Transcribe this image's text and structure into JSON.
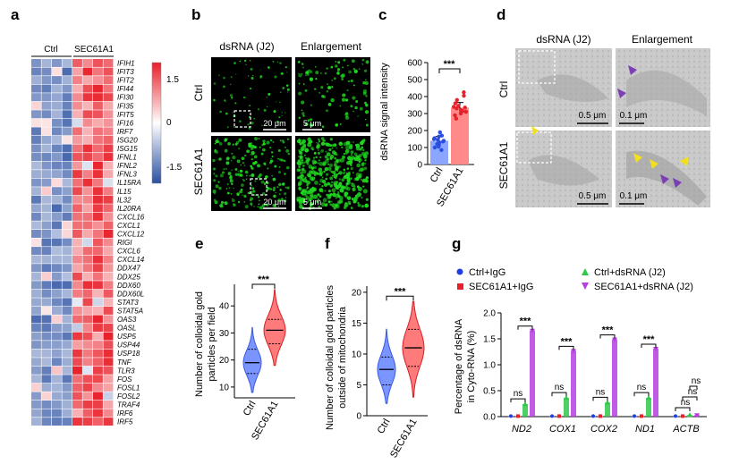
{
  "panels": {
    "a": "a",
    "b": "b",
    "c": "c",
    "d": "d",
    "e": "e",
    "f": "f",
    "g": "g"
  },
  "heatmap": {
    "groups": [
      "Ctrl",
      "SEC61A1"
    ],
    "genes": [
      "IFIH1",
      "IFIT3",
      "IFIT2",
      "IFI44",
      "IFI30",
      "IFI35",
      "IFIT5",
      "IFI16",
      "IRF7",
      "ISG20",
      "ISG15",
      "IFNL1",
      "IFNL2",
      "IFNL3",
      "IL15RA",
      "IL15",
      "IL32",
      "IL20RA",
      "CXCL16",
      "CXCL1",
      "CXCL12",
      "RIGI",
      "CXCL6",
      "CXCL14",
      "DDX47",
      "DDX25",
      "DDX60",
      "DDX60L",
      "STAT3",
      "STAT5A",
      "OAS3",
      "OASL",
      "USP5",
      "USP44",
      "USP18",
      "TNF",
      "TLR3",
      "FOS",
      "FOSL1",
      "FOSL2",
      "TRAF4",
      "IRF6",
      "IRF5"
    ],
    "colorbar_ticks": [
      "1.5",
      "0",
      "-1.5"
    ],
    "colors": {
      "high": "#e8202a",
      "mid": "#ffffff",
      "low": "#2a4fa1"
    }
  },
  "panel_b": {
    "col_titles": [
      "dsRNA  (J2)",
      "Enlargement"
    ],
    "row_labels": [
      "Ctrl",
      "SEC61A1"
    ],
    "scalebars": [
      "20 μm",
      "5 μm"
    ],
    "color": "#1fd81f"
  },
  "panel_c": {
    "ylabel": "dsRNA signal intensity",
    "yticks": [
      "0",
      "100",
      "200",
      "300",
      "400",
      "500",
      "600"
    ],
    "sig": "***",
    "chart_data": {
      "type": "bar",
      "categories": [
        "Ctrl",
        "SEC61A1"
      ],
      "values": [
        140,
        335
      ],
      "errors": [
        25,
        30
      ],
      "ylim": [
        0,
        600
      ],
      "points": [
        [
          85,
          100,
          105,
          115,
          120,
          130,
          135,
          140,
          145,
          150,
          155,
          165,
          170,
          190
        ],
        [
          270,
          290,
          300,
          310,
          315,
          320,
          330,
          335,
          340,
          345,
          360,
          380,
          405,
          425
        ]
      ]
    }
  },
  "panel_d": {
    "col_titles": [
      "dsRNA  (J2)",
      "Enlargement"
    ],
    "row_labels": [
      "Ctrl",
      "SEC61A1"
    ],
    "scalebars": [
      "0.5 μm",
      "0.1 μm"
    ]
  },
  "panel_e": {
    "ylabel": [
      "Number of colloidal gold",
      "particles per field"
    ],
    "yticks": [
      "10",
      "20",
      "30",
      "40"
    ],
    "sig": "***",
    "chart_data": {
      "type": "violin",
      "categories": [
        "Ctrl",
        "SEC61A1"
      ],
      "median": [
        19,
        31
      ],
      "quartiles": [
        [
          15,
          24
        ],
        [
          26,
          35
        ]
      ],
      "range": [
        [
          8,
          32
        ],
        [
          18,
          46
        ]
      ],
      "ylim": [
        6,
        48
      ]
    }
  },
  "panel_f": {
    "ylabel": [
      "Number of colloidal gold particles",
      "outside of mitochondria"
    ],
    "yticks": [
      "0",
      "5",
      "10",
      "15",
      "20"
    ],
    "sig": "***",
    "chart_data": {
      "type": "violin",
      "categories": [
        "Ctrl",
        "SEC61A1"
      ],
      "median": [
        7.5,
        11
      ],
      "quartiles": [
        [
          5,
          9.5
        ],
        [
          8,
          14
        ]
      ],
      "range": [
        [
          2,
          14
        ],
        [
          3,
          18.5
        ]
      ],
      "ylim": [
        0,
        21
      ]
    }
  },
  "panel_g": {
    "legend": [
      "Ctrl+IgG",
      "SEC61A1+IgG",
      "Ctrl+dsRNA (J2)",
      "SEC61A1+dsRNA (J2)"
    ],
    "ylabel": [
      "Percentage of dsRNA",
      "in Cyto-RNA (%)"
    ],
    "yticks": [
      "0.0",
      "0.5",
      "1.0",
      "1.5",
      "2.0"
    ],
    "colors": [
      "#1f3fe0",
      "#e8202a",
      "#2fc84b",
      "#b43ee0"
    ],
    "ns": "ns",
    "sig": "***",
    "chart_data": {
      "type": "bar",
      "categories": [
        "ND2",
        "COX1",
        "COX2",
        "ND1",
        "ACTB"
      ],
      "ylim": [
        0,
        2
      ],
      "series": [
        {
          "name": "Ctrl+IgG",
          "values": [
            0.01,
            0.01,
            0.01,
            0.01,
            0.01
          ]
        },
        {
          "name": "SEC61A1+IgG",
          "values": [
            0.01,
            0.01,
            0.01,
            0.01,
            0.01
          ]
        },
        {
          "name": "Ctrl+dsRNA (J2)",
          "values": [
            0.24,
            0.36,
            0.27,
            0.36,
            0.03
          ]
        },
        {
          "name": "SEC61A1+dsRNA (J2)",
          "values": [
            1.66,
            1.27,
            1.49,
            1.31,
            0.03
          ]
        }
      ]
    }
  }
}
